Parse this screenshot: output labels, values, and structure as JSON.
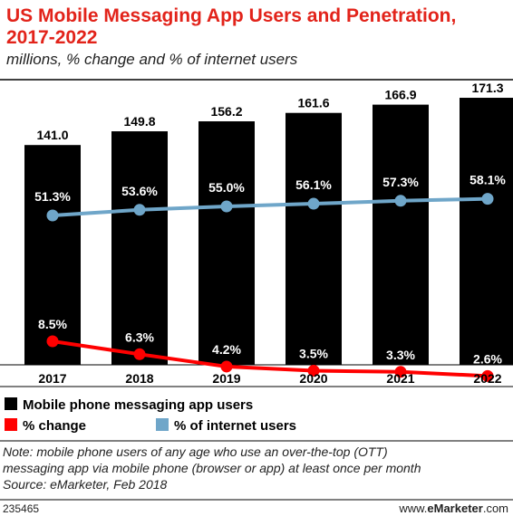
{
  "chart_data": {
    "type": "bar",
    "title_line1": "US Mobile Messaging App Users and Penetration,",
    "title_line2": "2017-2022",
    "subtitle": "millions, % change and % of internet users",
    "categories": [
      "2017",
      "2018",
      "2019",
      "2020",
      "2021",
      "2022"
    ],
    "series": [
      {
        "name": "Mobile phone messaging app users",
        "type": "bar",
        "color": "#000000",
        "values": [
          141.0,
          149.8,
          156.2,
          161.6,
          166.9,
          171.3
        ],
        "labels": [
          "141.0",
          "149.8",
          "156.2",
          "161.6",
          "166.9",
          "171.3"
        ]
      },
      {
        "name": "% change",
        "type": "line",
        "color": "#ff0000",
        "values": [
          8.5,
          6.3,
          4.2,
          3.5,
          3.3,
          2.6
        ],
        "labels": [
          "8.5%",
          "6.3%",
          "4.2%",
          "3.5%",
          "3.3%",
          "2.6%"
        ]
      },
      {
        "name": "% of internet users",
        "type": "line",
        "color": "#6fa6c9",
        "values": [
          51.3,
          53.6,
          55.0,
          56.1,
          57.3,
          58.1
        ],
        "labels": [
          "51.3%",
          "53.6%",
          "55.0%",
          "56.1%",
          "57.3%",
          "58.1%"
        ]
      }
    ],
    "legend_position": "bottom-left",
    "grid": false
  },
  "note_line1": "Note: mobile phone users of any age who use an over-the-top (OTT)",
  "note_line2": "messaging app via mobile phone (browser or app) at least once per month",
  "source": "Source: eMarketer, Feb 2018",
  "footer": {
    "chart_id": "235465",
    "brand_prefix": "www.",
    "brand_name": "eMarketer",
    "brand_suffix": ".com"
  }
}
